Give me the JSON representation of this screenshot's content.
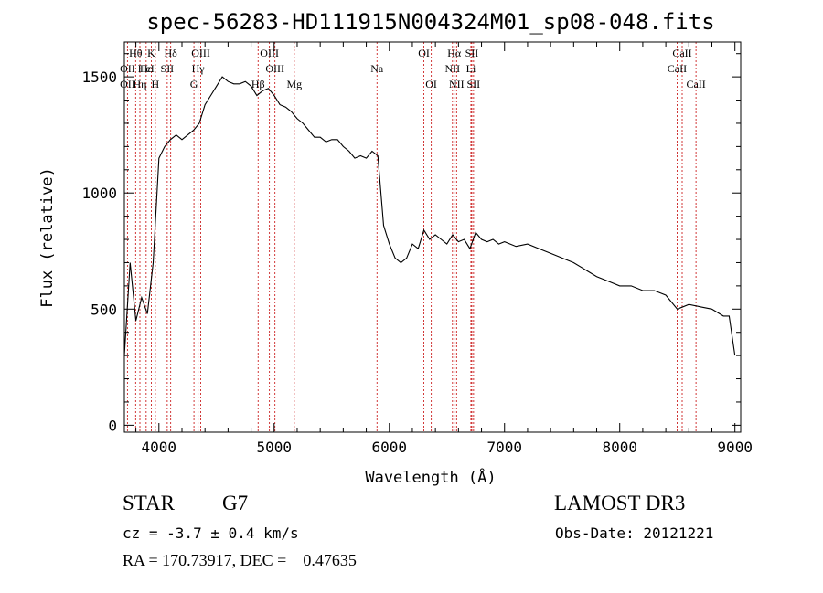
{
  "chart_data": {
    "type": "line",
    "title": "spec-56283-HD111915N004324M01_sp08-048.fits",
    "xlabel": "Wavelength (Å)",
    "ylabel": "Flux (relative)",
    "xlim": [
      3700,
      9050
    ],
    "ylim": [
      -30,
      1650
    ],
    "xticks": [
      4000,
      5000,
      6000,
      7000,
      8000,
      9000
    ],
    "yticks": [
      0,
      500,
      1000,
      1500
    ],
    "grid": false,
    "line_color": "#000000",
    "marker_color": "#cc2222",
    "series": [
      {
        "x": [
          3700,
          3750,
          3800,
          3850,
          3900,
          3950,
          4000,
          4050,
          4100,
          4150,
          4200,
          4250,
          4300,
          4350,
          4400,
          4450,
          4500,
          4550,
          4600,
          4650,
          4700,
          4750,
          4800,
          4850,
          4900,
          4950,
          5000,
          5050,
          5100,
          5150,
          5200,
          5250,
          5300,
          5350,
          5400,
          5450,
          5500,
          5550,
          5600,
          5650,
          5700,
          5750,
          5800,
          5850,
          5900,
          5950,
          6000,
          6050,
          6100,
          6150,
          6200,
          6250,
          6300,
          6350,
          6400,
          6450,
          6500,
          6550,
          6600,
          6650,
          6700,
          6750,
          6800,
          6850,
          6900,
          6950,
          7000,
          7100,
          7200,
          7300,
          7400,
          7500,
          7600,
          7700,
          7800,
          7900,
          8000,
          8100,
          8200,
          8300,
          8400,
          8500,
          8600,
          8700,
          8800,
          8900,
          8950,
          9000
        ],
        "y": [
          300,
          700,
          450,
          550,
          480,
          700,
          1150,
          1200,
          1230,
          1250,
          1230,
          1250,
          1270,
          1300,
          1380,
          1420,
          1460,
          1500,
          1480,
          1470,
          1470,
          1480,
          1460,
          1420,
          1440,
          1450,
          1420,
          1380,
          1370,
          1350,
          1320,
          1300,
          1270,
          1240,
          1240,
          1220,
          1230,
          1230,
          1200,
          1180,
          1150,
          1160,
          1150,
          1180,
          1160,
          860,
          780,
          720,
          700,
          720,
          780,
          760,
          840,
          800,
          820,
          800,
          780,
          820,
          790,
          800,
          760,
          830,
          800,
          790,
          800,
          780,
          790,
          770,
          780,
          760,
          740,
          720,
          700,
          670,
          640,
          620,
          600,
          600,
          580,
          580,
          560,
          500,
          520,
          510,
          500,
          470,
          470,
          300
        ]
      }
    ],
    "lines": [
      {
        "label": "Hθ",
        "x": 3798,
        "row": 0
      },
      {
        "label": "OII",
        "x": 3727,
        "row": 1
      },
      {
        "label": "OII",
        "x": 3727,
        "row": 2
      },
      {
        "label": "Hη",
        "x": 3835,
        "row": 2
      },
      {
        "label": "Hε",
        "x": 3889,
        "row": 1
      },
      {
        "label": "K",
        "x": 3934,
        "row": 0
      },
      {
        "label": "H",
        "x": 3969,
        "row": 2
      },
      {
        "label": "HeI",
        "x": 3889,
        "row": 1
      },
      {
        "label": "SII",
        "x": 4072,
        "row": 1
      },
      {
        "label": "Hδ",
        "x": 4102,
        "row": 0
      },
      {
        "label": "OIII",
        "x": 4363,
        "row": 0
      },
      {
        "label": "Hγ",
        "x": 4340,
        "row": 1
      },
      {
        "label": "G",
        "x": 4304,
        "row": 2
      },
      {
        "label": "OIII",
        "x": 4959,
        "row": 0
      },
      {
        "label": "OIII",
        "x": 5007,
        "row": 1
      },
      {
        "label": "Hβ",
        "x": 4861,
        "row": 2
      },
      {
        "label": "Mg",
        "x": 5175,
        "row": 2
      },
      {
        "label": "Na",
        "x": 5893,
        "row": 1
      },
      {
        "label": "OI",
        "x": 6300,
        "row": 0
      },
      {
        "label": "OI",
        "x": 6364,
        "row": 2
      },
      {
        "label": "Hα",
        "x": 6563,
        "row": 0
      },
      {
        "label": "SII",
        "x": 6716,
        "row": 0
      },
      {
        "label": "NII",
        "x": 6548,
        "row": 1
      },
      {
        "label": "Li",
        "x": 6708,
        "row": 1
      },
      {
        "label": "NII",
        "x": 6584,
        "row": 2
      },
      {
        "label": "SII",
        "x": 6731,
        "row": 2
      },
      {
        "label": "CaII",
        "x": 8542,
        "row": 0
      },
      {
        "label": "CaII",
        "x": 8498,
        "row": 1
      },
      {
        "label": "CaII",
        "x": 8662,
        "row": 2
      }
    ]
  },
  "info": {
    "object_class": "STAR",
    "subclass": "G7",
    "survey": "LAMOST DR3",
    "cz": "cz = -3.7 ± 0.4 km/s",
    "obs_date": "Obs-Date: 20121221",
    "coords": "RA = 170.73917, DEC =    0.47635"
  }
}
